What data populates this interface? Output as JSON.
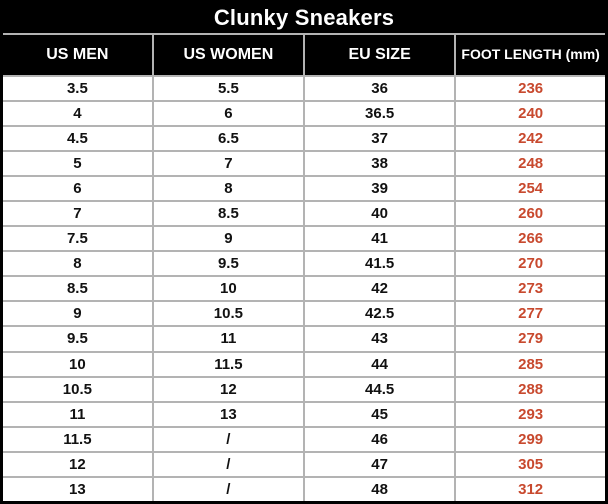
{
  "colors": {
    "header_bg": "#000000",
    "header_text": "#ffffff",
    "grid_line": "#b3b3b3",
    "outer_border": "#000000",
    "foot_length_accent": "#c8492e",
    "body_text": "#111111"
  },
  "chart_data": {
    "type": "table",
    "title": "Clunky Sneakers",
    "columns": [
      "US MEN",
      "US WOMEN",
      "EU SIZE",
      "FOOT LENGTH (mm)"
    ],
    "accent_column_index": 3,
    "missing_value_symbol": "/",
    "rows": [
      [
        "3.5",
        "5.5",
        "36",
        "236"
      ],
      [
        "4",
        "6",
        "36.5",
        "240"
      ],
      [
        "4.5",
        "6.5",
        "37",
        "242"
      ],
      [
        "5",
        "7",
        "38",
        "248"
      ],
      [
        "6",
        "8",
        "39",
        "254"
      ],
      [
        "7",
        "8.5",
        "40",
        "260"
      ],
      [
        "7.5",
        "9",
        "41",
        "266"
      ],
      [
        "8",
        "9.5",
        "41.5",
        "270"
      ],
      [
        "8.5",
        "10",
        "42",
        "273"
      ],
      [
        "9",
        "10.5",
        "42.5",
        "277"
      ],
      [
        "9.5",
        "11",
        "43",
        "279"
      ],
      [
        "10",
        "11.5",
        "44",
        "285"
      ],
      [
        "10.5",
        "12",
        "44.5",
        "288"
      ],
      [
        "11",
        "13",
        "45",
        "293"
      ],
      [
        "11.5",
        "/",
        "46",
        "299"
      ],
      [
        "12",
        "/",
        "47",
        "305"
      ],
      [
        "13",
        "/",
        "48",
        "312"
      ]
    ]
  }
}
